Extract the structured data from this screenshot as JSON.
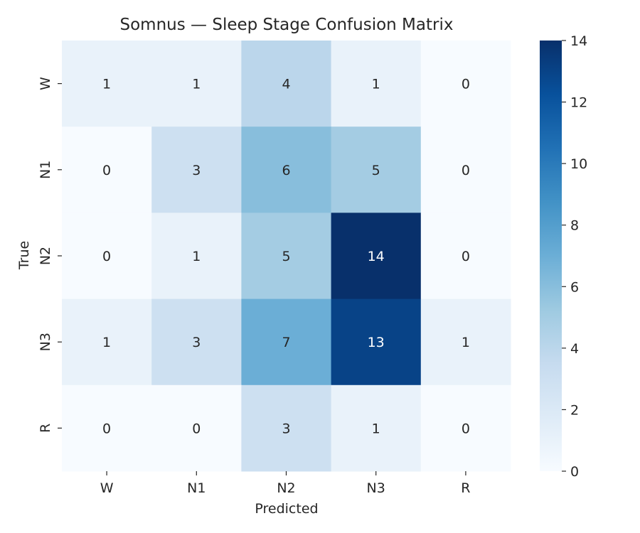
{
  "chart_data": {
    "type": "heatmap",
    "title": "Somnus — Sleep Stage Confusion Matrix",
    "xlabel": "Predicted",
    "ylabel": "True",
    "x_categories": [
      "W",
      "N1",
      "N2",
      "N3",
      "R"
    ],
    "y_categories": [
      "W",
      "N1",
      "N2",
      "N3",
      "R"
    ],
    "values": [
      [
        1,
        1,
        4,
        1,
        0
      ],
      [
        0,
        3,
        6,
        5,
        0
      ],
      [
        0,
        1,
        5,
        14,
        0
      ],
      [
        1,
        3,
        7,
        13,
        1
      ],
      [
        0,
        0,
        3,
        1,
        0
      ]
    ],
    "colorscale": "Blues",
    "vmin": 0,
    "vmax": 14,
    "colorbar_ticks": [
      0,
      2,
      4,
      6,
      8,
      10,
      12,
      14
    ],
    "annotations": true
  }
}
